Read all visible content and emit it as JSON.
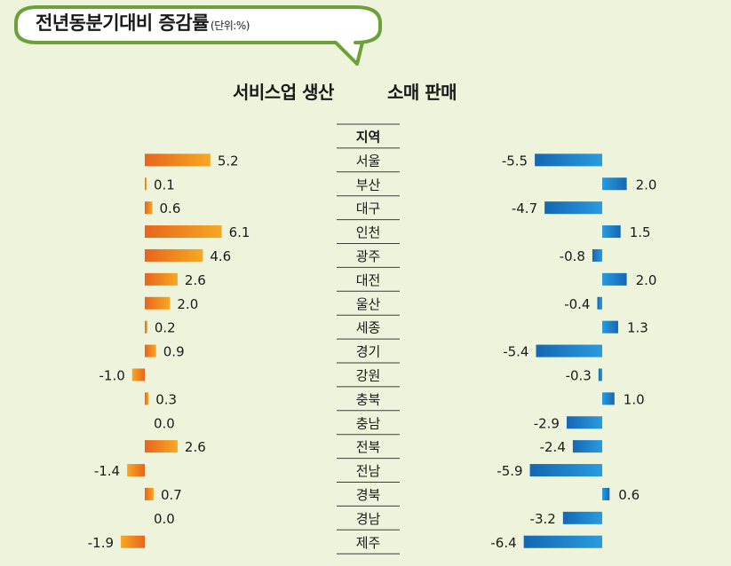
{
  "title": {
    "main": "전년동분기대비 증감률",
    "unit": "(단위:%)"
  },
  "chart_data": {
    "type": "bar",
    "category_header": "지역",
    "categories": [
      "서울",
      "부산",
      "대구",
      "인천",
      "광주",
      "대전",
      "울산",
      "세종",
      "경기",
      "강원",
      "충북",
      "충남",
      "전북",
      "전남",
      "경북",
      "경남",
      "제주"
    ],
    "series": [
      {
        "name": "서비스업 생산",
        "values": [
          5.2,
          0.1,
          0.6,
          6.1,
          4.6,
          2.6,
          2.0,
          0.2,
          0.9,
          -1.0,
          0.3,
          0.0,
          2.6,
          -1.4,
          0.7,
          0.0,
          -1.9
        ],
        "labels": [
          "5.2",
          "0.1",
          "0.6",
          "6.1",
          "4.6",
          "2.6",
          "2.0",
          "0.2",
          "0.9",
          "-1.0",
          "0.3",
          "0.0",
          "2.6",
          "-1.4",
          "0.7",
          "0.0",
          "-1.9"
        ],
        "color": "#f7a823",
        "color_dark": "#e8651c"
      },
      {
        "name": "소매 판매",
        "values": [
          -5.5,
          2.0,
          -4.7,
          1.5,
          -0.8,
          2.0,
          -0.4,
          1.3,
          -5.4,
          -0.3,
          1.0,
          -2.9,
          -2.4,
          -5.9,
          0.6,
          -3.2,
          -6.4
        ],
        "labels": [
          "-5.5",
          "2.0",
          "-4.7",
          "1.5",
          "-0.8",
          "2.0",
          "-0.4",
          "1.3",
          "-5.4",
          "-0.3",
          "1.0",
          "-2.9",
          "-2.4",
          "-5.9",
          "0.6",
          "-3.2",
          "-6.4"
        ],
        "color": "#2a9be0",
        "color_dark": "#1467b3"
      }
    ]
  },
  "colors": {
    "background": "#eef3dc",
    "bubble_border": "#6aa237",
    "table_line": "#3c3c3c"
  }
}
